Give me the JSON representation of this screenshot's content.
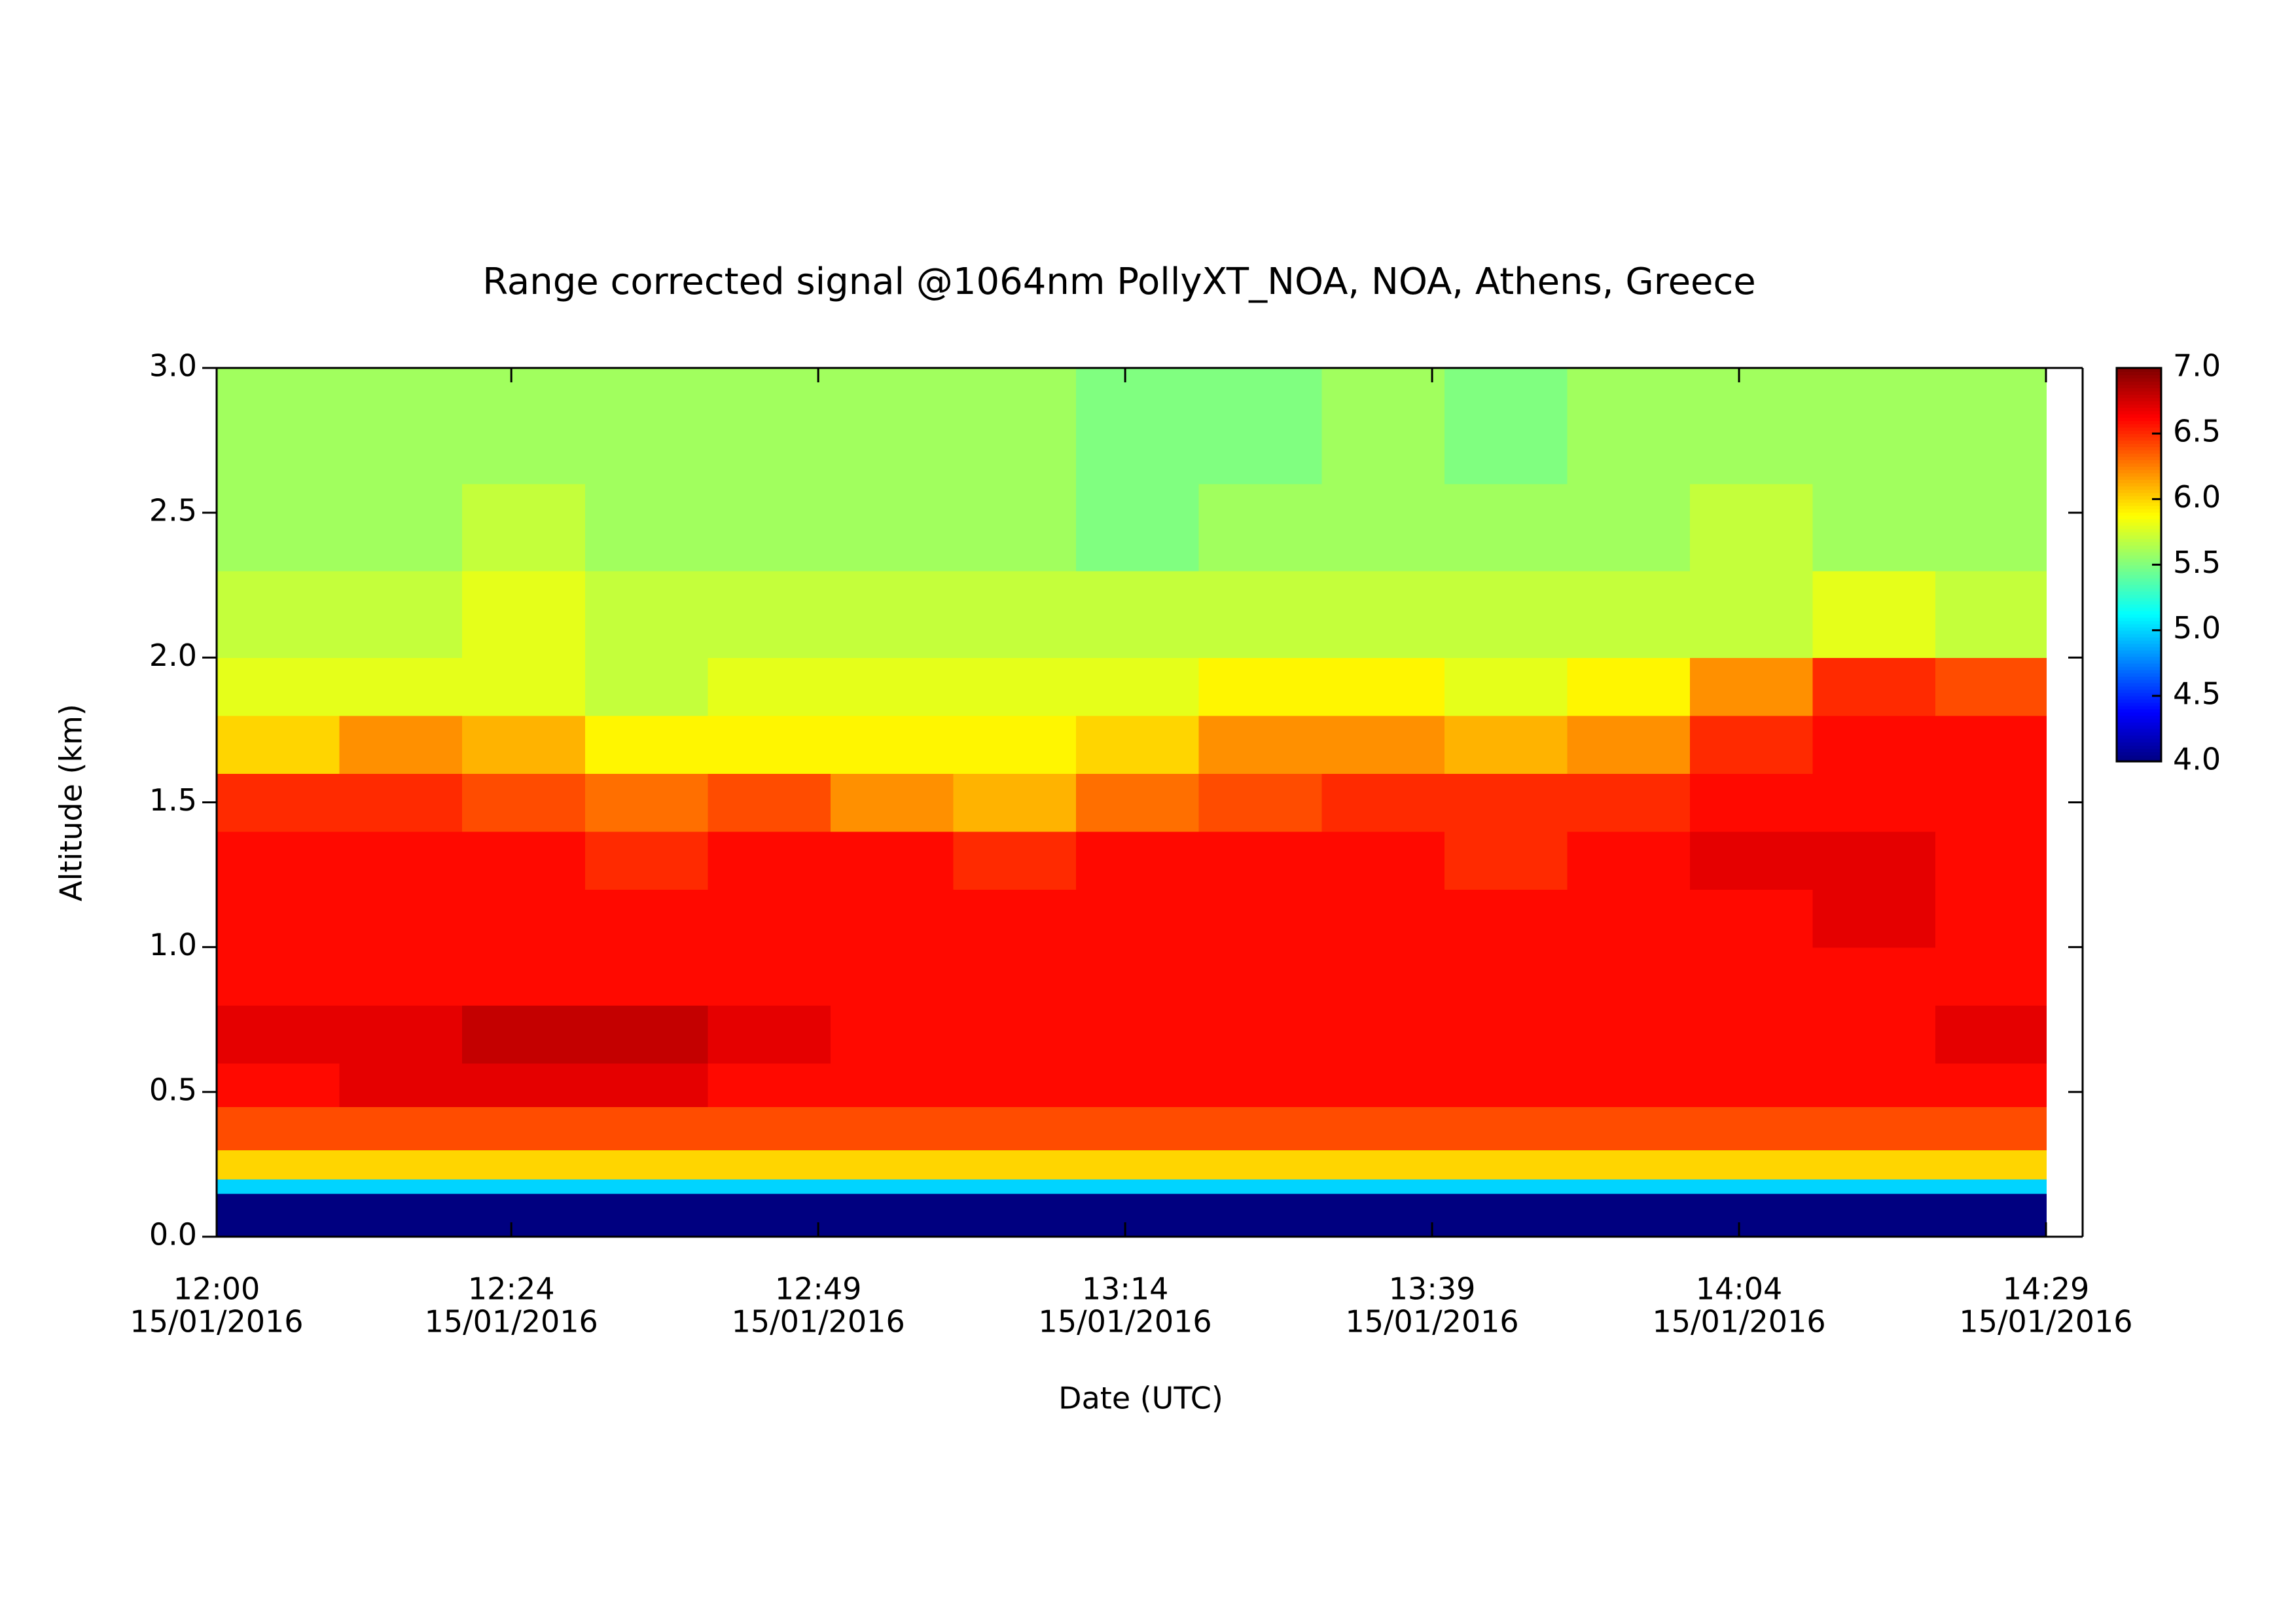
{
  "chart_data": {
    "type": "heatmap",
    "title": "Range corrected signal @1064nm  PollyXT_NOA, NOA, Athens, Greece",
    "xlabel": "Date (UTC)",
    "ylabel": "Altitude (km)",
    "colormap": "jet",
    "xlim": [
      "2016-01-15T12:00",
      "2016-01-15T14:29"
    ],
    "xticks": [
      {
        "value": "2016-01-15T12:00",
        "label": [
          "12:00",
          "15/01/2016"
        ]
      },
      {
        "value": "2016-01-15T12:24",
        "label": [
          "12:24",
          "15/01/2016"
        ]
      },
      {
        "value": "2016-01-15T12:49",
        "label": [
          "12:49",
          "15/01/2016"
        ]
      },
      {
        "value": "2016-01-15T13:14",
        "label": [
          "13:14",
          "15/01/2016"
        ]
      },
      {
        "value": "2016-01-15T13:39",
        "label": [
          "13:39",
          "15/01/2016"
        ]
      },
      {
        "value": "2016-01-15T14:04",
        "label": [
          "14:04",
          "15/01/2016"
        ]
      },
      {
        "value": "2016-01-15T14:29",
        "label": [
          "14:29",
          "15/01/2016"
        ]
      }
    ],
    "ylim": [
      0,
      3
    ],
    "yticks": [
      {
        "value": 0,
        "label": "0.0"
      },
      {
        "value": 0.5,
        "label": "0.5"
      },
      {
        "value": 1,
        "label": "1.0"
      },
      {
        "value": 1.5,
        "label": "1.5"
      },
      {
        "value": 2,
        "label": "2.0"
      },
      {
        "value": 2.5,
        "label": "2.5"
      },
      {
        "value": 3,
        "label": "3.0"
      }
    ],
    "zlim": [
      4,
      7
    ],
    "zticks": [
      {
        "value": 4,
        "label": "4.0"
      },
      {
        "value": 4.5,
        "label": "4.5"
      },
      {
        "value": 5,
        "label": "5.0"
      },
      {
        "value": 5.5,
        "label": "5.5"
      },
      {
        "value": 6,
        "label": "6.0"
      },
      {
        "value": 6.5,
        "label": "6.5"
      },
      {
        "value": 7,
        "label": "7.0"
      }
    ],
    "x_edges": [
      "2016-01-15T12:00",
      "2016-01-15T12:10",
      "2016-01-15T12:20",
      "2016-01-15T12:30",
      "2016-01-15T12:40",
      "2016-01-15T12:50",
      "2016-01-15T13:00",
      "2016-01-15T13:10",
      "2016-01-15T13:20",
      "2016-01-15T13:30",
      "2016-01-15T13:40",
      "2016-01-15T13:50",
      "2016-01-15T14:00",
      "2016-01-15T14:10",
      "2016-01-15T14:20",
      "2016-01-15T14:29"
    ],
    "y_edges": [
      0,
      0.15,
      0.2,
      0.3,
      0.45,
      0.6,
      0.8,
      1.0,
      1.2,
      1.4,
      1.6,
      1.8,
      2.0,
      2.3,
      2.6,
      3.0
    ],
    "z": [
      [
        4.0,
        4.0,
        4.0,
        4.0,
        4.0,
        4.0,
        4.0,
        4.0,
        4.0,
        4.0,
        4.0,
        4.0,
        4.0,
        4.0,
        4.0
      ],
      [
        5.0,
        5.0,
        5.0,
        5.0,
        5.0,
        5.0,
        5.0,
        5.0,
        5.0,
        5.0,
        5.0,
        5.0,
        5.0,
        5.0,
        5.0
      ],
      [
        6.0,
        6.0,
        6.0,
        6.0,
        6.0,
        6.0,
        6.0,
        6.0,
        6.0,
        6.0,
        6.0,
        6.0,
        6.0,
        6.0,
        6.0
      ],
      [
        6.4,
        6.4,
        6.4,
        6.4,
        6.4,
        6.4,
        6.4,
        6.4,
        6.4,
        6.4,
        6.4,
        6.4,
        6.4,
        6.4,
        6.4
      ],
      [
        6.6,
        6.7,
        6.7,
        6.7,
        6.6,
        6.6,
        6.6,
        6.6,
        6.6,
        6.6,
        6.6,
        6.6,
        6.6,
        6.6,
        6.6
      ],
      [
        6.7,
        6.7,
        6.8,
        6.8,
        6.7,
        6.6,
        6.6,
        6.6,
        6.6,
        6.6,
        6.6,
        6.6,
        6.6,
        6.6,
        6.7
      ],
      [
        6.6,
        6.6,
        6.6,
        6.6,
        6.6,
        6.6,
        6.6,
        6.6,
        6.6,
        6.6,
        6.6,
        6.6,
        6.6,
        6.6,
        6.6
      ],
      [
        6.6,
        6.6,
        6.6,
        6.6,
        6.6,
        6.6,
        6.6,
        6.6,
        6.6,
        6.6,
        6.6,
        6.6,
        6.6,
        6.7,
        6.6
      ],
      [
        6.6,
        6.6,
        6.6,
        6.5,
        6.6,
        6.6,
        6.5,
        6.6,
        6.6,
        6.6,
        6.5,
        6.6,
        6.7,
        6.7,
        6.6
      ],
      [
        6.5,
        6.5,
        6.4,
        6.3,
        6.4,
        6.2,
        6.1,
        6.3,
        6.4,
        6.5,
        6.5,
        6.5,
        6.6,
        6.6,
        6.6
      ],
      [
        6.0,
        6.2,
        6.1,
        5.9,
        5.9,
        5.9,
        5.9,
        6.0,
        6.2,
        6.2,
        6.1,
        6.2,
        6.5,
        6.6,
        6.6
      ],
      [
        5.8,
        5.8,
        5.8,
        5.7,
        5.8,
        5.8,
        5.8,
        5.8,
        5.9,
        5.9,
        5.8,
        5.9,
        6.2,
        6.5,
        6.4
      ],
      [
        5.7,
        5.7,
        5.8,
        5.7,
        5.7,
        5.7,
        5.7,
        5.7,
        5.7,
        5.7,
        5.7,
        5.7,
        5.7,
        5.8,
        5.7
      ],
      [
        5.6,
        5.6,
        5.7,
        5.6,
        5.6,
        5.6,
        5.6,
        5.5,
        5.6,
        5.6,
        5.6,
        5.6,
        5.7,
        5.6,
        5.6
      ],
      [
        5.6,
        5.6,
        5.6,
        5.6,
        5.6,
        5.6,
        5.6,
        5.5,
        5.5,
        5.6,
        5.5,
        5.6,
        5.6,
        5.6,
        5.6
      ]
    ]
  }
}
